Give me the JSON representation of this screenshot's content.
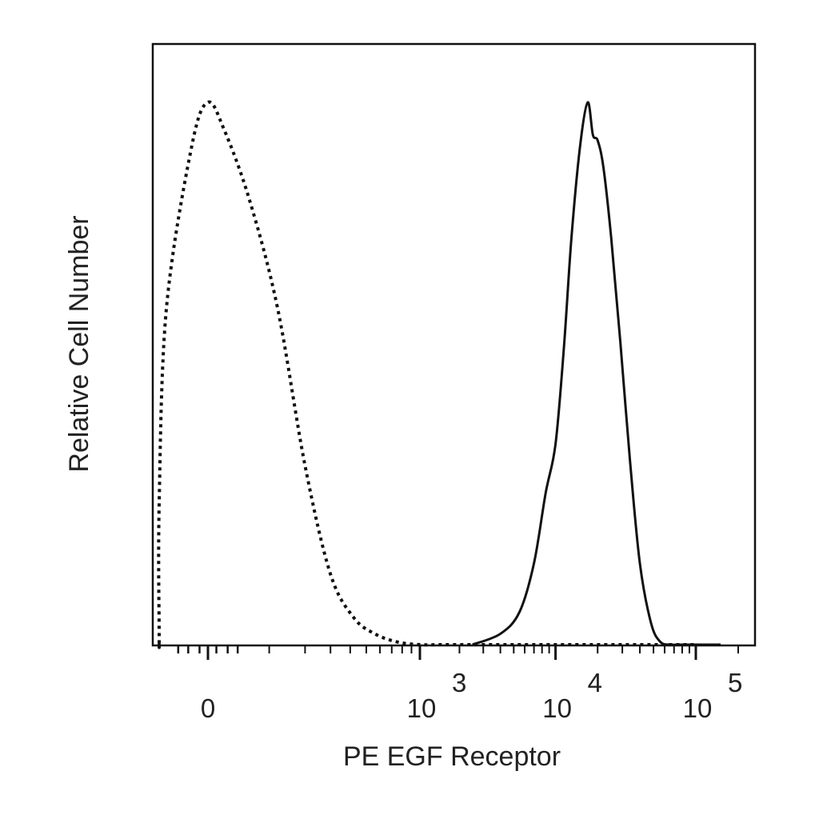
{
  "chart_data": {
    "type": "histogram",
    "title": "",
    "xlabel": "PE EGF Receptor",
    "ylabel": "Relative Cell Number",
    "x_scale": "biexponential (linear near 0, log above ~10^3)",
    "xlim": [
      -400,
      200000
    ],
    "ylim": [
      0,
      1.1
    ],
    "grid": false,
    "legend": "none",
    "x_ticks": [
      {
        "value": 0,
        "mantissa": "0",
        "exponent": ""
      },
      {
        "value": 1000,
        "mantissa": "10",
        "exponent": "3"
      },
      {
        "value": 10000,
        "mantissa": "10",
        "exponent": "4"
      },
      {
        "value": 100000,
        "mantissa": "10",
        "exponent": "5"
      }
    ],
    "series": [
      {
        "style": "dotted",
        "color": "#111111",
        "x": [
          -400,
          -250,
          -120,
          -60,
          -20,
          0,
          20,
          60,
          120,
          200,
          300,
          420,
          560,
          750,
          1000,
          1500,
          3000,
          10000,
          100000
        ],
        "y": [
          0.0,
          0.02,
          0.26,
          0.62,
          0.92,
          1.0,
          0.95,
          0.82,
          0.62,
          0.33,
          0.13,
          0.05,
          0.02,
          0.005,
          0.0,
          0.0,
          0.0,
          0.0,
          0.0
        ]
      },
      {
        "style": "solid",
        "color": "#111111",
        "x": [
          2500,
          4000,
          5500,
          7000,
          8500,
          10000,
          11500,
          13000,
          15000,
          17000,
          18500,
          20000,
          22000,
          25000,
          29000,
          34000,
          40000,
          48000,
          56000,
          66000,
          80000,
          150000
        ],
        "y": [
          0.0,
          0.02,
          0.06,
          0.15,
          0.28,
          0.37,
          0.55,
          0.75,
          0.92,
          1.0,
          0.94,
          0.93,
          0.88,
          0.75,
          0.56,
          0.34,
          0.15,
          0.04,
          0.005,
          0.0,
          0.0,
          0.0
        ]
      }
    ]
  }
}
